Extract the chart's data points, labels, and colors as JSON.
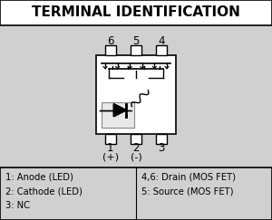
{
  "title": "TERMINAL IDENTIFICATION",
  "background_color": "#d0d0d0",
  "title_bg": "#ffffff",
  "legend_lines_left": [
    "1: Anode (LED)",
    "2: Cathode (LED)",
    "3: NC"
  ],
  "legend_lines_right": [
    "4,6: Drain (MOS FET)",
    "5: Source (MOS FET)"
  ],
  "pin_labels_top": [
    "6",
    "5",
    "4"
  ],
  "pin_labels_bottom": [
    "1",
    "2",
    "3"
  ],
  "pin_sub_bottom": [
    "(+)",
    "(-)"
  ]
}
